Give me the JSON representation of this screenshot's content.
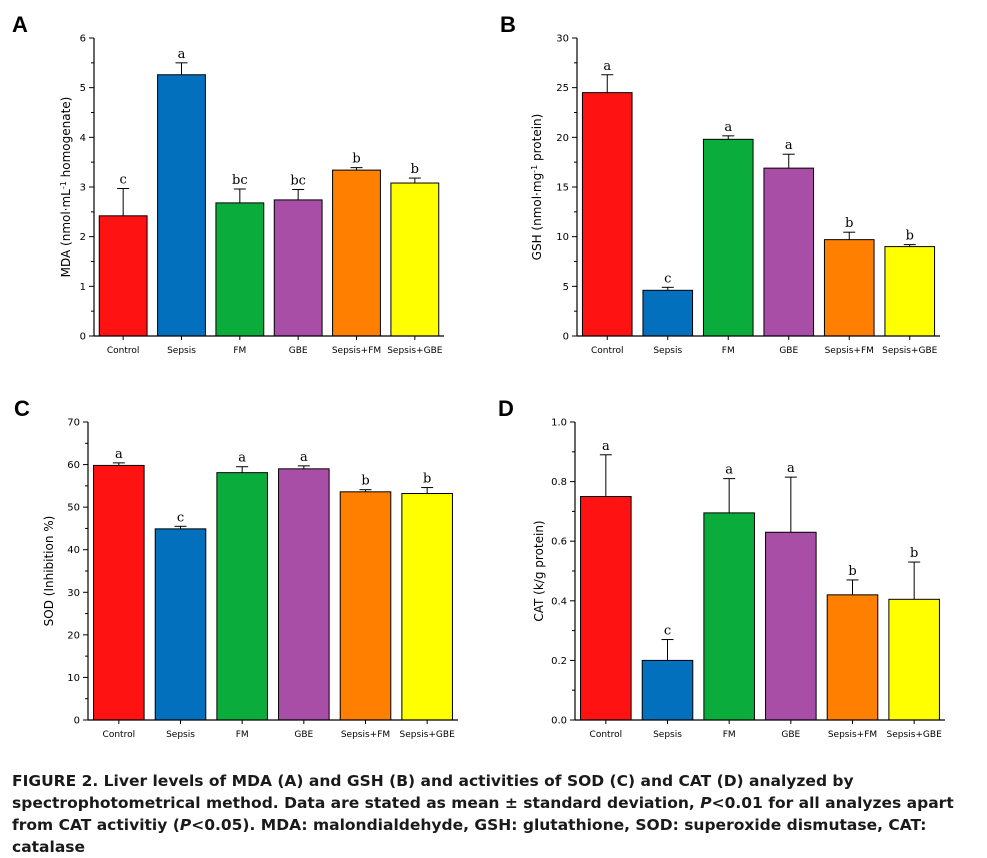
{
  "categories": [
    "Control",
    "Sepsis",
    "FM",
    "GBE",
    "Sepsis+FM",
    "Sepsis+GBE"
  ],
  "bar_colors": [
    "#ff1212",
    "#0270bd",
    "#0aad3b",
    "#a84ea6",
    "#ff7f00",
    "#ffff00"
  ],
  "chart_data": [
    {
      "type": "bar",
      "panel_label": "A",
      "ylabel_pre": "MDA (nmol·mL",
      "ylabel_sup": "-1",
      "ylabel_post": " homogenate)",
      "ylim": [
        0,
        6
      ],
      "yticks": [
        0,
        1,
        2,
        3,
        4,
        5,
        6
      ],
      "values": [
        2.42,
        5.26,
        2.68,
        2.74,
        3.34,
        3.08
      ],
      "errors": [
        0.55,
        0.24,
        0.28,
        0.21,
        0.05,
        0.1
      ],
      "letters": [
        "c",
        "a",
        "bc",
        "bc",
        "b",
        "b"
      ]
    },
    {
      "type": "bar",
      "panel_label": "B",
      "ylabel_pre": "GSH (nmol·mg",
      "ylabel_sup": "-1",
      "ylabel_post": " protein)",
      "ylim": [
        0,
        30
      ],
      "yticks": [
        0,
        5,
        10,
        15,
        20,
        25,
        30
      ],
      "values": [
        24.5,
        4.6,
        19.8,
        16.9,
        9.7,
        9.0
      ],
      "errors": [
        1.8,
        0.3,
        0.35,
        1.4,
        0.75,
        0.2
      ],
      "letters": [
        "a",
        "c",
        "a",
        "a",
        "b",
        "b"
      ]
    },
    {
      "type": "bar",
      "panel_label": "C",
      "ylabel_pre": "SOD (Inhibition %)",
      "ylabel_sup": "",
      "ylabel_post": "",
      "ylim": [
        0,
        70
      ],
      "yticks": [
        0,
        10,
        20,
        30,
        40,
        50,
        60,
        70
      ],
      "values": [
        59.8,
        44.9,
        58.1,
        59.0,
        53.6,
        53.2
      ],
      "errors": [
        0.6,
        0.6,
        1.4,
        0.7,
        0.5,
        1.4
      ],
      "letters": [
        "a",
        "c",
        "a",
        "a",
        "b",
        "b"
      ]
    },
    {
      "type": "bar",
      "panel_label": "D",
      "ylabel_pre": "CAT (k/g protein)",
      "ylabel_sup": "",
      "ylabel_post": "",
      "ylim": [
        0,
        1.0
      ],
      "yticks": [
        "0.0",
        "0.2",
        "0.4",
        "0.6",
        "0.8",
        "1.0"
      ],
      "values": [
        0.75,
        0.2,
        0.695,
        0.63,
        0.42,
        0.405
      ],
      "errors": [
        0.14,
        0.07,
        0.115,
        0.185,
        0.05,
        0.125
      ],
      "letters": [
        "a",
        "c",
        "a",
        "a",
        "b",
        "b"
      ]
    }
  ],
  "caption": {
    "p1": "FIGURE 2. Liver levels of MDA (A) and GSH (B) and activities of SOD (C) and CAT (D) analyzed by spectrophotometrical method. Data are stated as mean ± standard deviation, ",
    "p_italic1": "P",
    "p2": "<0.01 for all analyzes apart from CAT activitiy (",
    "p_italic2": "P",
    "p3": "<0.05). MDA: malondialdehyde, GSH: glutathione, SOD: superoxide dismutase, CAT: catalase"
  }
}
